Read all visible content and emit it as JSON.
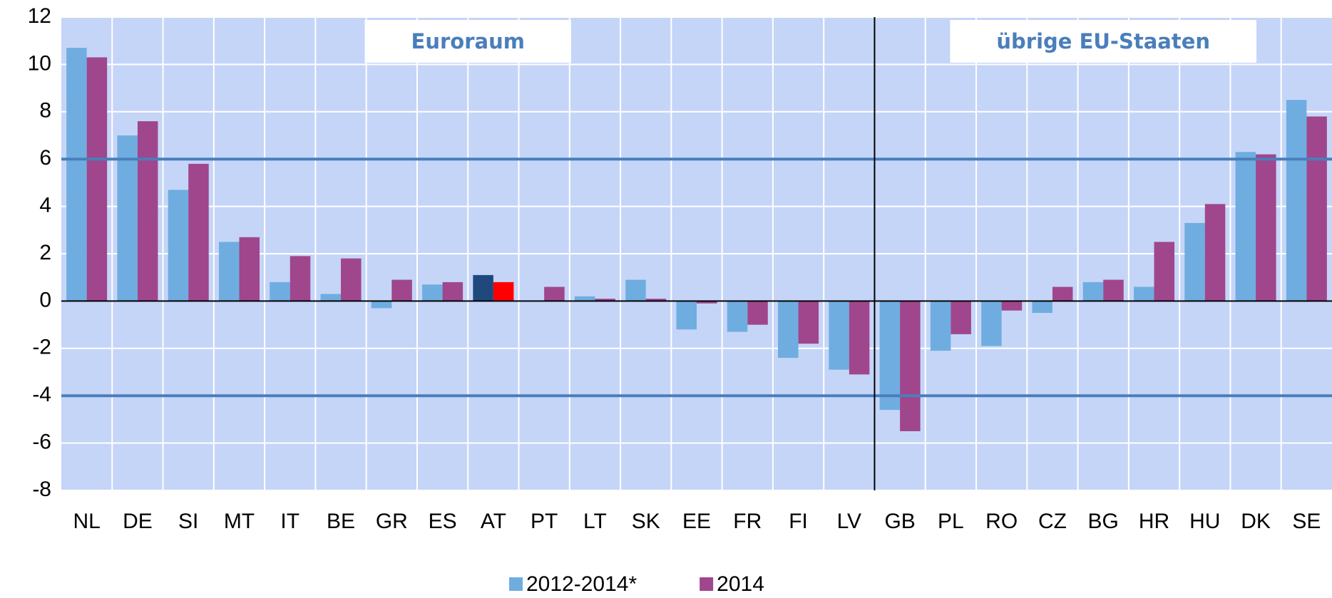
{
  "chart_data": {
    "type": "bar",
    "categories": [
      "NL",
      "DE",
      "SI",
      "MT",
      "IT",
      "BE",
      "GR",
      "ES",
      "AT",
      "PT",
      "LT",
      "SK",
      "EE",
      "FR",
      "FI",
      "LV",
      "GB",
      "PL",
      "RO",
      "CZ",
      "BG",
      "HR",
      "HU",
      "DK",
      "SE"
    ],
    "series": [
      {
        "name": "2012-2014*",
        "color": "#6fade0",
        "values": [
          10.7,
          7.0,
          4.7,
          2.5,
          0.8,
          0.3,
          -0.3,
          0.7,
          1.1,
          null,
          0.2,
          0.9,
          -1.2,
          -1.3,
          -2.4,
          -2.9,
          -4.6,
          -2.1,
          -1.9,
          -0.5,
          0.8,
          0.6,
          3.3,
          6.3,
          8.5
        ]
      },
      {
        "name": "2014",
        "color": "#a0468c",
        "values": [
          10.3,
          7.6,
          5.8,
          2.7,
          1.9,
          1.8,
          0.9,
          0.8,
          0.8,
          0.6,
          0.1,
          0.1,
          -0.1,
          -1.0,
          -1.8,
          -3.1,
          -5.5,
          -1.4,
          -0.4,
          0.6,
          0.9,
          2.5,
          4.1,
          6.2,
          7.8
        ]
      }
    ],
    "highlight": {
      "category": "AT",
      "colors": [
        "#1f497d",
        "#ff0000"
      ]
    },
    "ylim": [
      -8,
      12
    ],
    "yticks": [
      -8,
      -6,
      -4,
      -2,
      0,
      2,
      4,
      6,
      8,
      10,
      12
    ],
    "grid": true,
    "reference_lines": [
      6,
      -4
    ],
    "reference_color": "#4a7ebb",
    "groups": [
      {
        "label": "Euroraum",
        "start": "NL"
      },
      {
        "label": "übrige EU-Staaten",
        "start": "GB"
      }
    ],
    "legend": "bottom"
  }
}
